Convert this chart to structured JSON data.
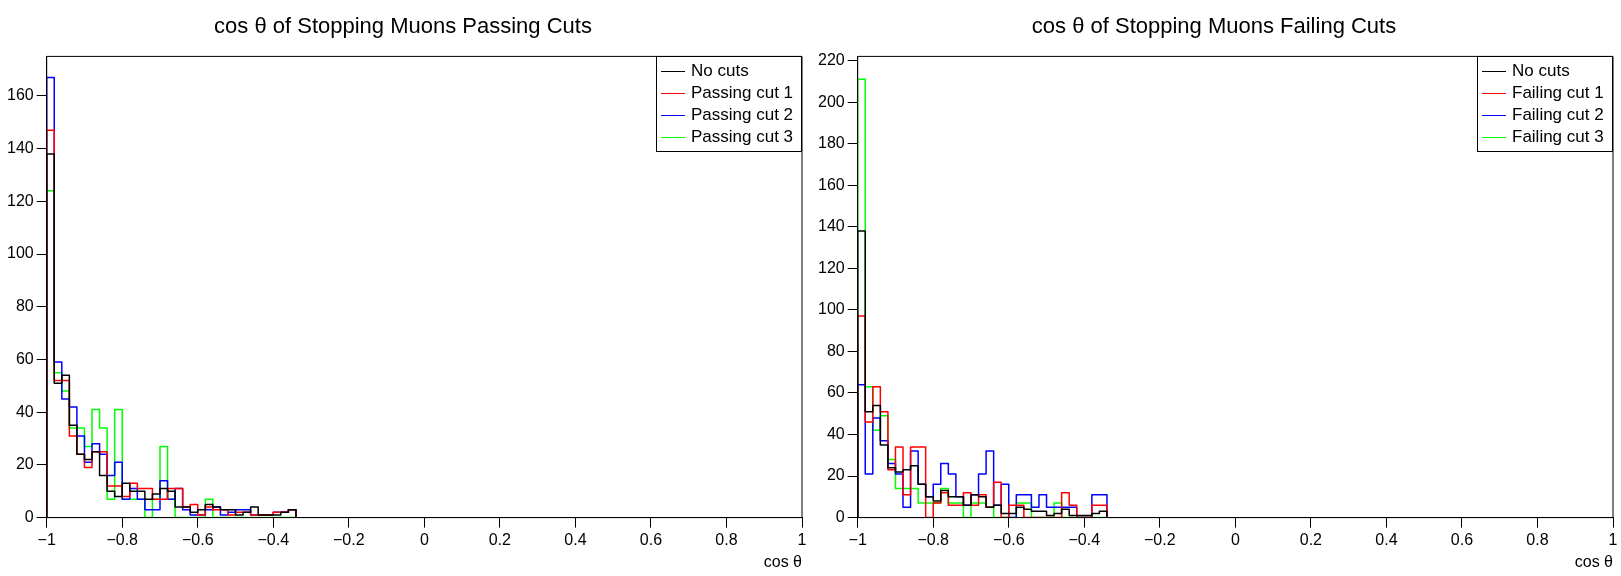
{
  "chart_data": [
    {
      "type": "histogram",
      "title": "cos θ of Stopping Muons Passing Cuts",
      "xlabel": "cos θ",
      "bins": [
        -1,
        -0.98,
        -0.96,
        -0.94,
        -0.92,
        -0.9,
        -0.88,
        -0.86,
        -0.84,
        -0.82,
        -0.8,
        -0.78,
        -0.76,
        -0.74,
        -0.72,
        -0.7,
        -0.68,
        -0.66,
        -0.64,
        -0.62,
        -0.6,
        -0.58,
        -0.56,
        -0.54,
        -0.52,
        -0.5,
        -0.48,
        -0.46,
        -0.44,
        -0.42,
        -0.4,
        -0.38,
        -0.36,
        -0.34
      ],
      "series": [
        {
          "name": "No cuts",
          "color": "#000000",
          "values": [
            138,
            51,
            54,
            35,
            24,
            22,
            25,
            16,
            10,
            8,
            13,
            10,
            10,
            7,
            9,
            11,
            10,
            4,
            4,
            2,
            3,
            5,
            4,
            3,
            3,
            1,
            2,
            4,
            1,
            1,
            1,
            2,
            3
          ]
        },
        {
          "name": "Passing cut 1",
          "color": "#ff0000",
          "values": [
            147,
            52,
            52,
            31,
            24,
            19,
            25,
            25,
            12,
            12,
            8,
            13,
            11,
            11,
            7,
            7,
            11,
            11,
            4,
            5,
            1,
            4,
            3,
            3,
            1,
            2,
            2,
            1,
            1,
            1,
            2,
            2,
            3
          ]
        },
        {
          "name": "Passing cut 2",
          "color": "#0000ff",
          "values": [
            167,
            59,
            45,
            42,
            31,
            21,
            28,
            24,
            16,
            21,
            7,
            11,
            7,
            3,
            3,
            14,
            7,
            11,
            3,
            1,
            1,
            3,
            4,
            1,
            2,
            3,
            3,
            1,
            1,
            1,
            2,
            2,
            3
          ]
        },
        {
          "name": "Passing cut 3",
          "color": "#00ff00",
          "values": [
            124,
            55,
            48,
            34,
            34,
            27,
            41,
            34,
            7,
            41,
            7,
            7,
            7,
            0,
            7,
            27,
            7,
            0,
            0,
            0,
            0,
            7,
            0,
            0,
            0,
            0,
            0,
            0,
            0,
            0,
            0,
            0,
            0
          ]
        }
      ],
      "xlim": [
        -1,
        1
      ],
      "ylim": [
        0,
        175
      ],
      "xticks": [
        {
          "value": -1,
          "label": "−1"
        },
        {
          "value": -0.8,
          "label": "−0.8"
        },
        {
          "value": -0.6,
          "label": "−0.6"
        },
        {
          "value": -0.4,
          "label": "−0.4"
        },
        {
          "value": -0.2,
          "label": "−0.2"
        },
        0,
        0.2,
        0.4,
        0.6,
        0.8,
        1
      ],
      "yticks": [
        0,
        20,
        40,
        60,
        80,
        100,
        120,
        140,
        160
      ],
      "legend": "top right",
      "grid": false
    },
    {
      "type": "histogram",
      "title": "cos θ of Stopping Muons Failing Cuts",
      "xlabel": "cos θ",
      "bins": [
        -1,
        -0.98,
        -0.96,
        -0.94,
        -0.92,
        -0.9,
        -0.88,
        -0.86,
        -0.84,
        -0.82,
        -0.8,
        -0.78,
        -0.76,
        -0.74,
        -0.72,
        -0.7,
        -0.68,
        -0.66,
        -0.64,
        -0.62,
        -0.6,
        -0.58,
        -0.56,
        -0.54,
        -0.52,
        -0.5,
        -0.48,
        -0.46,
        -0.44,
        -0.42,
        -0.4,
        -0.38,
        -0.36,
        -0.34
      ],
      "series": [
        {
          "name": "No cuts",
          "color": "#000000",
          "values": [
            138,
            51,
            54,
            35,
            24,
            22,
            23,
            25,
            16,
            10,
            8,
            13,
            10,
            10,
            6,
            11,
            10,
            5,
            6,
            2,
            2,
            5,
            4,
            3,
            3,
            1,
            2,
            4,
            1,
            1,
            1,
            2,
            3
          ]
        },
        {
          "name": "Failing cut 1",
          "color": "#ff0000",
          "values": [
            97,
            46,
            63,
            51,
            23,
            34,
            11,
            34,
            34,
            0,
            7,
            12,
            6,
            6,
            12,
            6,
            11,
            5,
            17,
            0,
            6,
            6,
            0,
            0,
            0,
            0,
            0,
            12,
            6,
            0,
            0,
            6,
            6
          ]
        },
        {
          "name": "Failing cut 2",
          "color": "#0000ff",
          "values": [
            64,
            21,
            48,
            37,
            26,
            21,
            5,
            32,
            16,
            10,
            16,
            26,
            21,
            10,
            6,
            11,
            21,
            32,
            6,
            16,
            0,
            11,
            11,
            5,
            11,
            5,
            5,
            5,
            5,
            0,
            0,
            11,
            11
          ]
        },
        {
          "name": "Failing cut 3",
          "color": "#00ff00",
          "values": [
            211,
            63,
            42,
            49,
            28,
            14,
            14,
            14,
            7,
            7,
            7,
            14,
            7,
            7,
            0,
            7,
            7,
            5,
            0,
            0,
            0,
            7,
            7,
            0,
            0,
            0,
            7,
            0,
            0,
            0,
            0,
            0,
            0
          ]
        }
      ],
      "xlim": [
        -1,
        1
      ],
      "ylim": [
        0,
        222
      ],
      "xticks": [
        {
          "value": -1,
          "label": "−1"
        },
        {
          "value": -0.8,
          "label": "−0.8"
        },
        {
          "value": -0.6,
          "label": "−0.6"
        },
        {
          "value": -0.4,
          "label": "−0.4"
        },
        {
          "value": -0.2,
          "label": "−0.2"
        },
        0,
        0.2,
        0.4,
        0.6,
        0.8,
        1
      ],
      "yticks": [
        0,
        20,
        40,
        60,
        80,
        100,
        120,
        140,
        160,
        180,
        200,
        220
      ],
      "legend": "top right",
      "grid": false
    }
  ]
}
